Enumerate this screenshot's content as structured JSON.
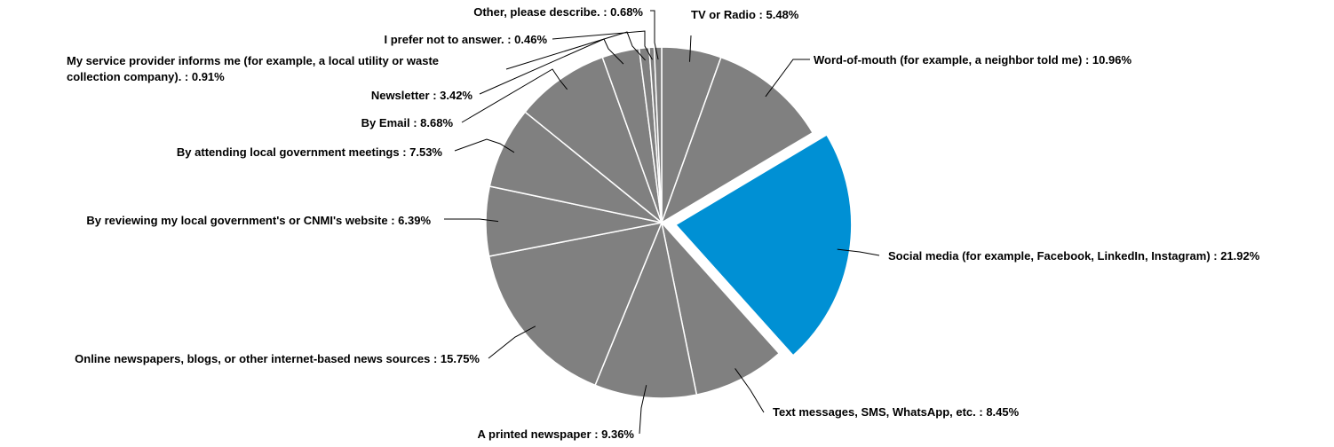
{
  "chart_data": {
    "type": "pie",
    "title": "",
    "slices": [
      {
        "label": "TV or Radio",
        "value": 5.48,
        "text": "TV or Radio : 5.48%",
        "color": "#808080",
        "exploded": false
      },
      {
        "label": "Word-of-mouth (for example, a neighbor told me)",
        "value": 10.96,
        "text": "Word-of-mouth (for example, a neighbor told me) : 10.96%",
        "color": "#808080",
        "exploded": false
      },
      {
        "label": "Social media (for example, Facebook, LinkedIn, Instagram)",
        "value": 21.92,
        "text": "Social media (for example, Facebook, LinkedIn, Instagram) : 21.92%",
        "color": "#0090d4",
        "exploded": true
      },
      {
        "label": "Text messages, SMS, WhatsApp, etc.",
        "value": 8.45,
        "text": "Text messages, SMS, WhatsApp, etc. : 8.45%",
        "color": "#808080",
        "exploded": false
      },
      {
        "label": "A printed newspaper",
        "value": 9.36,
        "text": "A printed newspaper : 9.36%",
        "color": "#808080",
        "exploded": false
      },
      {
        "label": "Online newspapers, blogs, or other internet-based news sources",
        "value": 15.75,
        "text": "Online newspapers, blogs, or other internet-based news sources : 15.75%",
        "color": "#808080",
        "exploded": false
      },
      {
        "label": "By reviewing my local government's or CNMI's website",
        "value": 6.39,
        "text": "By reviewing my local government's or CNMI's website : 6.39%",
        "color": "#808080",
        "exploded": false
      },
      {
        "label": "By attending local government meetings",
        "value": 7.53,
        "text": "By attending local government meetings : 7.53%",
        "color": "#808080",
        "exploded": false
      },
      {
        "label": "By Email",
        "value": 8.68,
        "text": "By Email : 8.68%",
        "color": "#808080",
        "exploded": false
      },
      {
        "label": "Newsletter",
        "value": 3.42,
        "text": "Newsletter : 3.42%",
        "color": "#808080",
        "exploded": false
      },
      {
        "label": "My service provider informs me (for example, a local utility or waste collection company).",
        "value": 0.91,
        "text": [
          "My service provider informs me (for example, a local utility or waste",
          "collection company). : 0.91%"
        ],
        "color": "#808080",
        "exploded": false
      },
      {
        "label": "I prefer not to answer.",
        "value": 0.46,
        "text": "I prefer not to answer. : 0.46%",
        "color": "#808080",
        "exploded": false
      },
      {
        "label": "Other, please describe.",
        "value": 0.68,
        "text": "Other, please describe. : 0.68%",
        "color": "#808080",
        "exploded": false
      }
    ]
  }
}
